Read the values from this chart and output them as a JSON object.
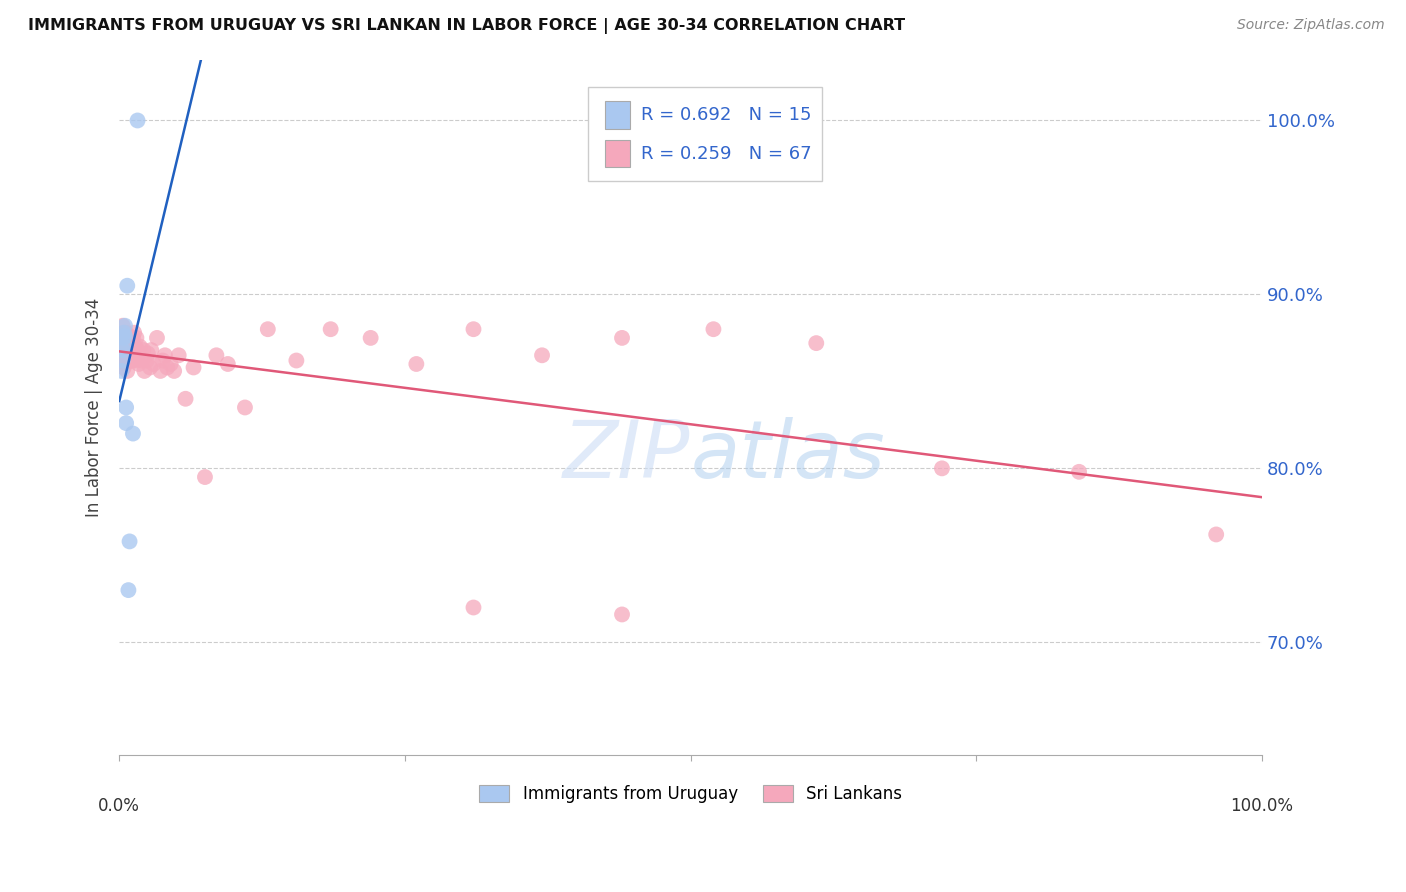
{
  "title": "IMMIGRANTS FROM URUGUAY VS SRI LANKAN IN LABOR FORCE | AGE 30-34 CORRELATION CHART",
  "source": "Source: ZipAtlas.com",
  "ylabel": "In Labor Force | Age 30-34",
  "watermark": "ZIPatlas",
  "legend_label1": "Immigrants from Uruguay",
  "legend_label2": "Sri Lankans",
  "color_uruguay": "#aac8f0",
  "color_srilanka": "#f5a8bc",
  "color_line_uruguay": "#2060c0",
  "color_line_srilanka": "#e05878",
  "color_rn_text": "#3366cc",
  "color_tick_right": "#3366cc",
  "ytick_vals": [
    0.7,
    0.8,
    0.9,
    1.0
  ],
  "ytick_labels": [
    "70.0%",
    "80.0%",
    "90.0%",
    "100.0%"
  ],
  "xmin": 0.0,
  "xmax": 1.0,
  "ymin": 0.635,
  "ymax": 1.035,
  "uruguay_x": [
    0.002,
    0.003,
    0.003,
    0.004,
    0.004,
    0.005,
    0.005,
    0.005,
    0.006,
    0.006,
    0.007,
    0.008,
    0.009,
    0.012,
    0.016
  ],
  "uruguay_y": [
    0.856,
    0.862,
    0.868,
    0.875,
    0.878,
    0.882,
    0.876,
    0.87,
    0.835,
    0.826,
    0.905,
    0.73,
    0.758,
    0.82,
    1.0
  ],
  "srilanka_x": [
    0.002,
    0.003,
    0.003,
    0.004,
    0.004,
    0.004,
    0.005,
    0.005,
    0.005,
    0.006,
    0.006,
    0.006,
    0.007,
    0.007,
    0.008,
    0.008,
    0.009,
    0.009,
    0.01,
    0.01,
    0.011,
    0.012,
    0.012,
    0.013,
    0.014,
    0.015,
    0.015,
    0.016,
    0.017,
    0.018,
    0.02,
    0.021,
    0.022,
    0.024,
    0.025,
    0.027,
    0.028,
    0.03,
    0.033,
    0.036,
    0.038,
    0.04,
    0.042,
    0.045,
    0.048,
    0.052,
    0.058,
    0.065,
    0.075,
    0.085,
    0.095,
    0.11,
    0.13,
    0.155,
    0.185,
    0.22,
    0.26,
    0.31,
    0.37,
    0.44,
    0.52,
    0.61,
    0.72,
    0.84,
    0.96,
    0.31,
    0.44
  ],
  "srilanka_y": [
    0.876,
    0.882,
    0.87,
    0.878,
    0.864,
    0.858,
    0.876,
    0.868,
    0.86,
    0.878,
    0.87,
    0.862,
    0.875,
    0.856,
    0.875,
    0.862,
    0.876,
    0.868,
    0.875,
    0.862,
    0.87,
    0.875,
    0.862,
    0.878,
    0.87,
    0.875,
    0.862,
    0.868,
    0.86,
    0.87,
    0.862,
    0.868,
    0.856,
    0.862,
    0.866,
    0.858,
    0.868,
    0.86,
    0.875,
    0.856,
    0.862,
    0.865,
    0.858,
    0.86,
    0.856,
    0.865,
    0.84,
    0.858,
    0.795,
    0.865,
    0.86,
    0.835,
    0.88,
    0.862,
    0.88,
    0.875,
    0.86,
    0.88,
    0.865,
    0.875,
    0.88,
    0.872,
    0.8,
    0.798,
    0.762,
    0.72,
    0.716
  ]
}
